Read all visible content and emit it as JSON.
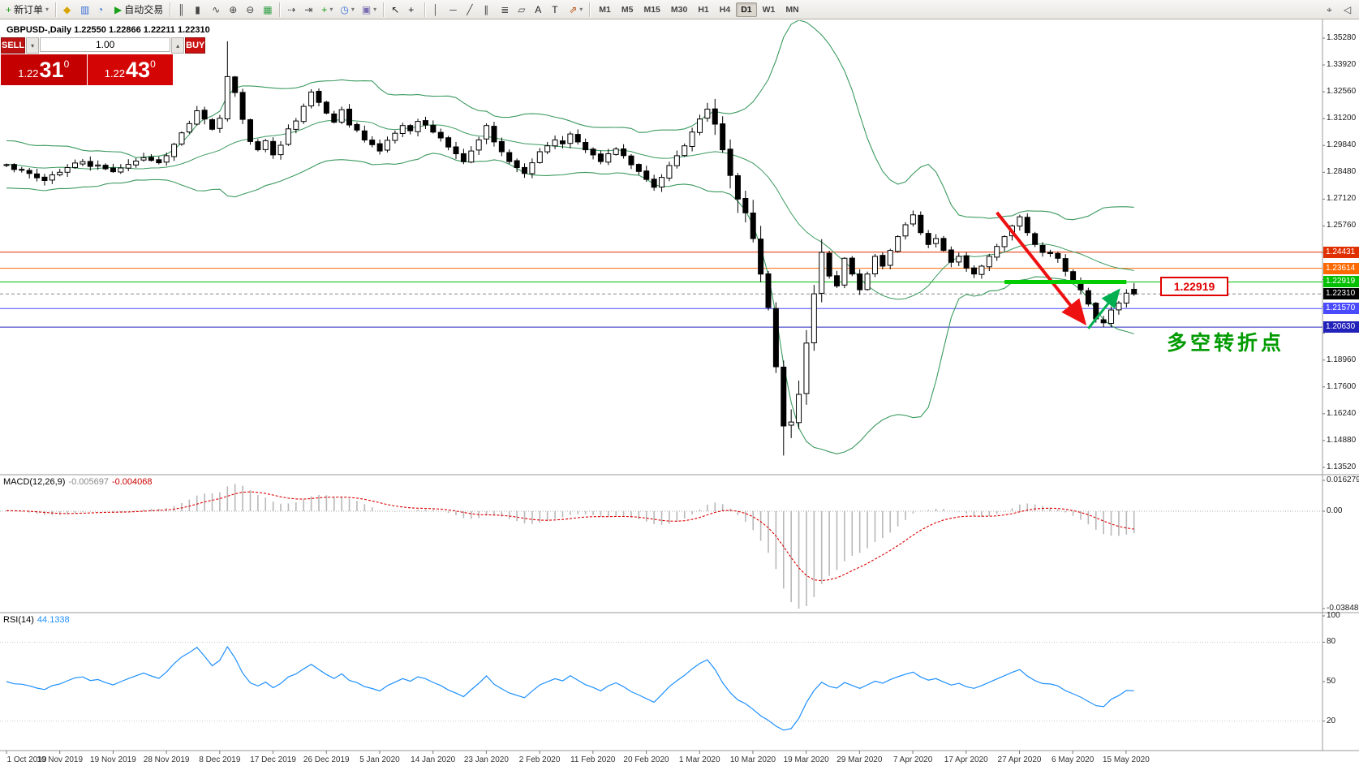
{
  "toolbar": {
    "active_timeframe": "D1",
    "items": [
      {
        "t": "btn",
        "name": "new-order-button",
        "icon": "+",
        "icon_color": "#1a9c1a",
        "label": "新订单",
        "caret": true
      },
      {
        "t": "sep"
      },
      {
        "t": "btn",
        "name": "profiles-button",
        "icon": "◆",
        "icon_color": "#d9a400"
      },
      {
        "t": "btn",
        "name": "market-watch-button",
        "icon": "▥",
        "icon_color": "#3a6fd8"
      },
      {
        "t": "btn",
        "name": "data-window-button",
        "icon": "◔",
        "icon_color": "#3a6fd8"
      },
      {
        "t": "btn",
        "name": "autotrading-button",
        "icon": "▶",
        "icon_color": "#18a018",
        "label": "自动交易"
      },
      {
        "t": "sep"
      },
      {
        "t": "btn",
        "name": "bar-chart-button",
        "icon": "║",
        "icon_color": "#444"
      },
      {
        "t": "btn",
        "name": "candlestick-chart-button",
        "icon": "▮",
        "icon_color": "#444"
      },
      {
        "t": "btn",
        "name": "line-chart-button",
        "icon": "∿",
        "icon_color": "#444"
      },
      {
        "t": "btn",
        "name": "zoom-in-button",
        "icon": "⊕",
        "icon_color": "#444"
      },
      {
        "t": "btn",
        "name": "zoom-out-button",
        "icon": "⊖",
        "icon_color": "#444"
      },
      {
        "t": "btn",
        "name": "tile-windows-button",
        "icon": "▦",
        "icon_color": "#2f9e44"
      },
      {
        "t": "sep"
      },
      {
        "t": "btn",
        "name": "auto-scroll-button",
        "icon": "⇢",
        "icon_color": "#444"
      },
      {
        "t": "btn",
        "name": "chart-shift-button",
        "icon": "⇥",
        "icon_color": "#444"
      },
      {
        "t": "btn",
        "name": "indicators-button",
        "icon": "+",
        "icon_color": "#1a9c1a",
        "caret": true
      },
      {
        "t": "btn",
        "name": "periods-button",
        "icon": "◷",
        "icon_color": "#3a6fd8",
        "caret": true
      },
      {
        "t": "btn",
        "name": "templates-button",
        "icon": "▣",
        "icon_color": "#7a6fb0",
        "caret": true
      },
      {
        "t": "sep"
      },
      {
        "t": "btn",
        "name": "cursor-button",
        "icon": "↖",
        "icon_color": "#222"
      },
      {
        "t": "btn",
        "name": "crosshair-button",
        "icon": "+",
        "icon_color": "#222"
      },
      {
        "t": "sep"
      },
      {
        "t": "btn",
        "name": "vertical-line-button",
        "icon": "│",
        "icon_color": "#444"
      },
      {
        "t": "btn",
        "name": "horizontal-line-button",
        "icon": "─",
        "icon_color": "#444"
      },
      {
        "t": "btn",
        "name": "trendline-button",
        "icon": "╱",
        "icon_color": "#444"
      },
      {
        "t": "btn",
        "name": "equidistant-channel-button",
        "icon": "∥",
        "icon_color": "#444"
      },
      {
        "t": "btn",
        "name": "fibonacci-button",
        "icon": "≣",
        "icon_color": "#444"
      },
      {
        "t": "btn",
        "name": "shapes-button",
        "icon": "▱",
        "icon_color": "#444"
      },
      {
        "t": "btn",
        "name": "text-button",
        "icon": "A",
        "icon_color": "#222"
      },
      {
        "t": "btn",
        "name": "text-label-button",
        "icon": "T",
        "icon_color": "#222"
      },
      {
        "t": "btn",
        "name": "arrows-button",
        "icon": "⇗",
        "icon_color": "#b04a00",
        "caret": true
      },
      {
        "t": "sep"
      },
      {
        "t": "tf",
        "name": "timeframe-m1",
        "label": "M1"
      },
      {
        "t": "tf",
        "name": "timeframe-m5",
        "label": "M5"
      },
      {
        "t": "tf",
        "name": "timeframe-m15",
        "label": "M15"
      },
      {
        "t": "tf",
        "name": "timeframe-m30",
        "label": "M30"
      },
      {
        "t": "tf",
        "name": "timeframe-h1",
        "label": "H1"
      },
      {
        "t": "tf",
        "name": "timeframe-h4",
        "label": "H4"
      },
      {
        "t": "tf",
        "name": "timeframe-d1",
        "label": "D1"
      },
      {
        "t": "tf",
        "name": "timeframe-w1",
        "label": "W1"
      },
      {
        "t": "tf",
        "name": "timeframe-mn",
        "label": "MN"
      },
      {
        "t": "spacer"
      },
      {
        "t": "btn",
        "name": "search-symbol-button",
        "icon": "⌖",
        "icon_color": "#444"
      },
      {
        "t": "btn",
        "name": "sound-button",
        "icon": "◁",
        "icon_color": "#444"
      }
    ]
  },
  "trade_panel": {
    "sell_label": "SELL",
    "buy_label": "BUY",
    "volume": "1.00",
    "spin_up": "▴",
    "spin_down": "▾",
    "sell_price": {
      "prefix": "1.22",
      "big": "31",
      "sup": "0"
    },
    "buy_price": {
      "prefix": "1.22",
      "big": "43",
      "sup": "0"
    }
  },
  "chart": {
    "symbol_line": "GBPUSD-,Daily 1.22550 1.22866 1.22211 1.22310",
    "annotation": {
      "text": "多空转折点",
      "color": "#009b00"
    },
    "level_callout": "1.22919"
  },
  "macd": {
    "name": "MACD(12,26,9)",
    "value1": "-0.005697",
    "value2": "-0.004068",
    "axis": [
      "0.016279",
      "0.00",
      "-0.038485"
    ]
  },
  "rsi": {
    "name": "RSI(14)",
    "value": "44.1338",
    "axis": [
      "100",
      "80",
      "50",
      "20"
    ],
    "levels": [
      80,
      20
    ]
  },
  "colors": {
    "band_green": "#3c9a5f",
    "bull": "#ffffff",
    "bear": "#000000",
    "outline": "#000000",
    "macd_hist": "#b8b8b8",
    "macd_signal": "#dd0000",
    "rsi_line": "#1e90ff",
    "arrow_red": "#ee1111",
    "arrow_green": "#00b050",
    "thick_green": "#00cc00"
  },
  "chart_data": {
    "type": "candlestick",
    "symbol": "GBPUSD-",
    "timeframe": "Daily",
    "ohlc_line": {
      "open": "1.22550",
      "high": "1.22866",
      "low": "1.22211",
      "close": "1.22310"
    },
    "bars": 149,
    "first_open": 1.289,
    "closes": [
      1.2885,
      1.2862,
      1.2858,
      1.2842,
      1.282,
      1.2806,
      1.2835,
      1.2848,
      1.2872,
      1.2895,
      1.2902,
      1.2878,
      1.2885,
      1.2866,
      1.2851,
      1.287,
      1.2888,
      1.2905,
      1.2922,
      1.2908,
      1.2896,
      1.2932,
      1.299,
      1.3048,
      1.3095,
      1.316,
      1.3118,
      1.3066,
      1.3122,
      1.3333,
      1.3252,
      1.3116,
      1.3004,
      1.2962,
      1.3008,
      1.2936,
      1.2985,
      1.3068,
      1.3108,
      1.3182,
      1.3255,
      1.3202,
      1.3148,
      1.3102,
      1.3165,
      1.3088,
      1.3062,
      1.3012,
      1.2988,
      1.2956,
      1.301,
      1.3046,
      1.3085,
      1.3058,
      1.3106,
      1.3088,
      1.3052,
      1.3022,
      1.2976,
      1.2942,
      1.2902,
      1.2956,
      1.3012,
      1.3085,
      1.3002,
      1.2952,
      1.2902,
      1.2872,
      1.2842,
      1.2896,
      1.2952,
      1.2982,
      1.3012,
      1.2992,
      1.3042,
      1.3002,
      1.2962,
      1.2936,
      1.2902,
      1.2942,
      1.2966,
      1.2932,
      1.2886,
      1.2852,
      1.2812,
      1.2772,
      1.2822,
      1.2882,
      1.2932,
      1.2982,
      1.3052,
      1.3118,
      1.3168,
      1.3092,
      1.2962,
      1.2832,
      1.2712,
      1.2642,
      1.2512,
      1.2332,
      1.2162,
      1.1862,
      1.1562,
      1.1582,
      1.1722,
      1.1982,
      1.2232,
      1.2442,
      1.2322,
      1.2272,
      1.2412,
      1.2332,
      1.2252,
      1.2332,
      1.2422,
      1.2372,
      1.2452,
      1.2522,
      1.2582,
      1.2632,
      1.2542,
      1.2482,
      1.2512,
      1.2452,
      1.2392,
      1.2422,
      1.2362,
      1.2332,
      1.2372,
      1.2422,
      1.2472,
      1.2522,
      1.2576,
      1.2622,
      1.2542,
      1.2482,
      1.2442,
      1.2436,
      1.2412,
      1.2346,
      1.2302,
      1.2252,
      1.218,
      1.2105,
      1.2085,
      1.215,
      1.2185,
      1.2235,
      1.2231
    ],
    "overrides": {
      "29": {
        "h": 1.3512
      },
      "92": {
        "h": 1.32
      },
      "102": {
        "l": 1.1412
      },
      "144": {
        "l": 1.2063
      },
      "148": {
        "o": 1.2255,
        "h": 1.22866,
        "l": 1.22211,
        "c": 1.2231
      }
    },
    "indicators": [
      {
        "name": "Bollinger Bands",
        "period": 20,
        "deviation": 2,
        "color": "#3c9a5f"
      },
      {
        "name": "MACD",
        "fast": 12,
        "slow": 26,
        "signal": 9,
        "values": [
          "-0.005697",
          "-0.004068"
        ]
      },
      {
        "name": "RSI",
        "period": 14,
        "value": "44.1338"
      }
    ],
    "levels": [
      {
        "price": 1.24431,
        "label": "1.24431",
        "color": "#e03000"
      },
      {
        "price": 1.23614,
        "label": "1.23614",
        "color": "#ff6a00"
      },
      {
        "price": 1.22919,
        "label": "1.22919",
        "color": "#00c000"
      },
      {
        "price": 1.2231,
        "label": "1.22310",
        "color": "#000000",
        "style": "current"
      },
      {
        "price": 1.2157,
        "label": "1.21570",
        "color": "#4a4aff"
      },
      {
        "price": 1.2063,
        "label": "1.20630",
        "color": "#2222bb"
      }
    ],
    "annotations": [
      {
        "type": "arrow",
        "name": "downtrend-arrow",
        "color": "#ee1111",
        "width": 4,
        "marker": "arrR",
        "from": {
          "bar": 130,
          "price": 1.2644
        },
        "to": {
          "bar": 141.5,
          "price": 1.2084
        }
      },
      {
        "type": "arrow",
        "name": "reversal-arrow",
        "color": "#00b050",
        "width": 3,
        "marker": "arrG",
        "from": {
          "bar": 142,
          "price": 1.2056
        },
        "to": {
          "bar": 146,
          "price": 1.225
        }
      },
      {
        "type": "hsegment",
        "name": "support-zone-line",
        "color": "#00cc00",
        "width": 5,
        "price": 1.22919,
        "bar1": 131,
        "bar2": 147
      }
    ],
    "price_axis": [
      "1.35280",
      "1.33920",
      "1.32560",
      "1.31200",
      "1.29840",
      "1.28480",
      "1.27120",
      "1.25760",
      "1.24400",
      "1.23040",
      "1.21680",
      "1.20320",
      "1.18960",
      "1.17600",
      "1.16240",
      "1.14880",
      "1.13520"
    ],
    "date_axis": [
      "1 Oct 2019",
      "10 Nov 2019",
      "19 Nov 2019",
      "28 Nov 2019",
      "8 Dec 2019",
      "17 Dec 2019",
      "26 Dec 2019",
      "5 Jan 2020",
      "14 Jan 2020",
      "23 Jan 2020",
      "2 Feb 2020",
      "11 Feb 2020",
      "20 Feb 2020",
      "1 Mar 2020",
      "10 Mar 2020",
      "19 Mar 2020",
      "29 Mar 2020",
      "7 Apr 2020",
      "17 Apr 2020",
      "27 Apr 2020",
      "6 May 2020",
      "15 May 2020"
    ]
  }
}
